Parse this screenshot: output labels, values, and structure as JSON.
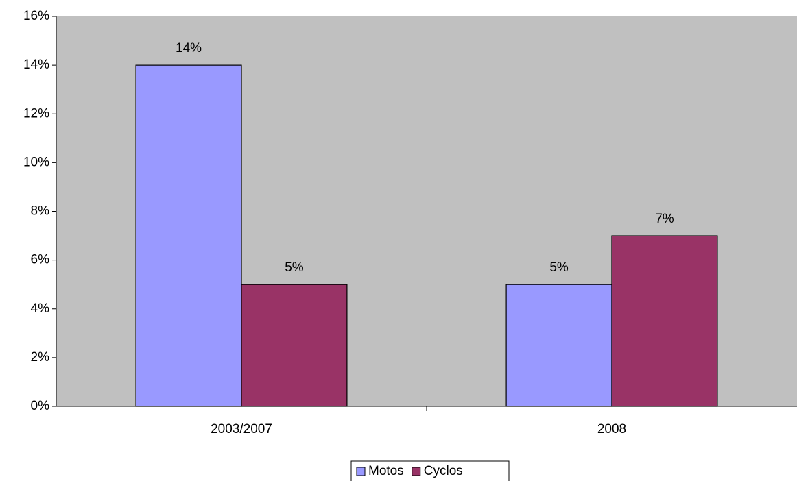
{
  "chart_data": {
    "type": "bar",
    "categories": [
      "2003/2007",
      "2008"
    ],
    "series": [
      {
        "name": "Motos",
        "color": "#9999ff",
        "values": [
          14,
          5
        ],
        "value_labels": [
          "14%",
          "5%"
        ]
      },
      {
        "name": "Cyclos",
        "color": "#993366",
        "values": [
          5,
          7
        ],
        "value_labels": [
          "5%",
          "7%"
        ]
      }
    ],
    "ylim": [
      0,
      16
    ],
    "yticks": [
      {
        "value": 0,
        "label": "0%"
      },
      {
        "value": 2,
        "label": "2%"
      },
      {
        "value": 4,
        "label": "4%"
      },
      {
        "value": 6,
        "label": "6%"
      },
      {
        "value": 8,
        "label": "8%"
      },
      {
        "value": 10,
        "label": "10%"
      },
      {
        "value": 12,
        "label": "12%"
      },
      {
        "value": 14,
        "label": "14%"
      },
      {
        "value": 16,
        "label": "16%"
      }
    ],
    "legend": "bottom",
    "plot_background": "#c0c0c0"
  }
}
